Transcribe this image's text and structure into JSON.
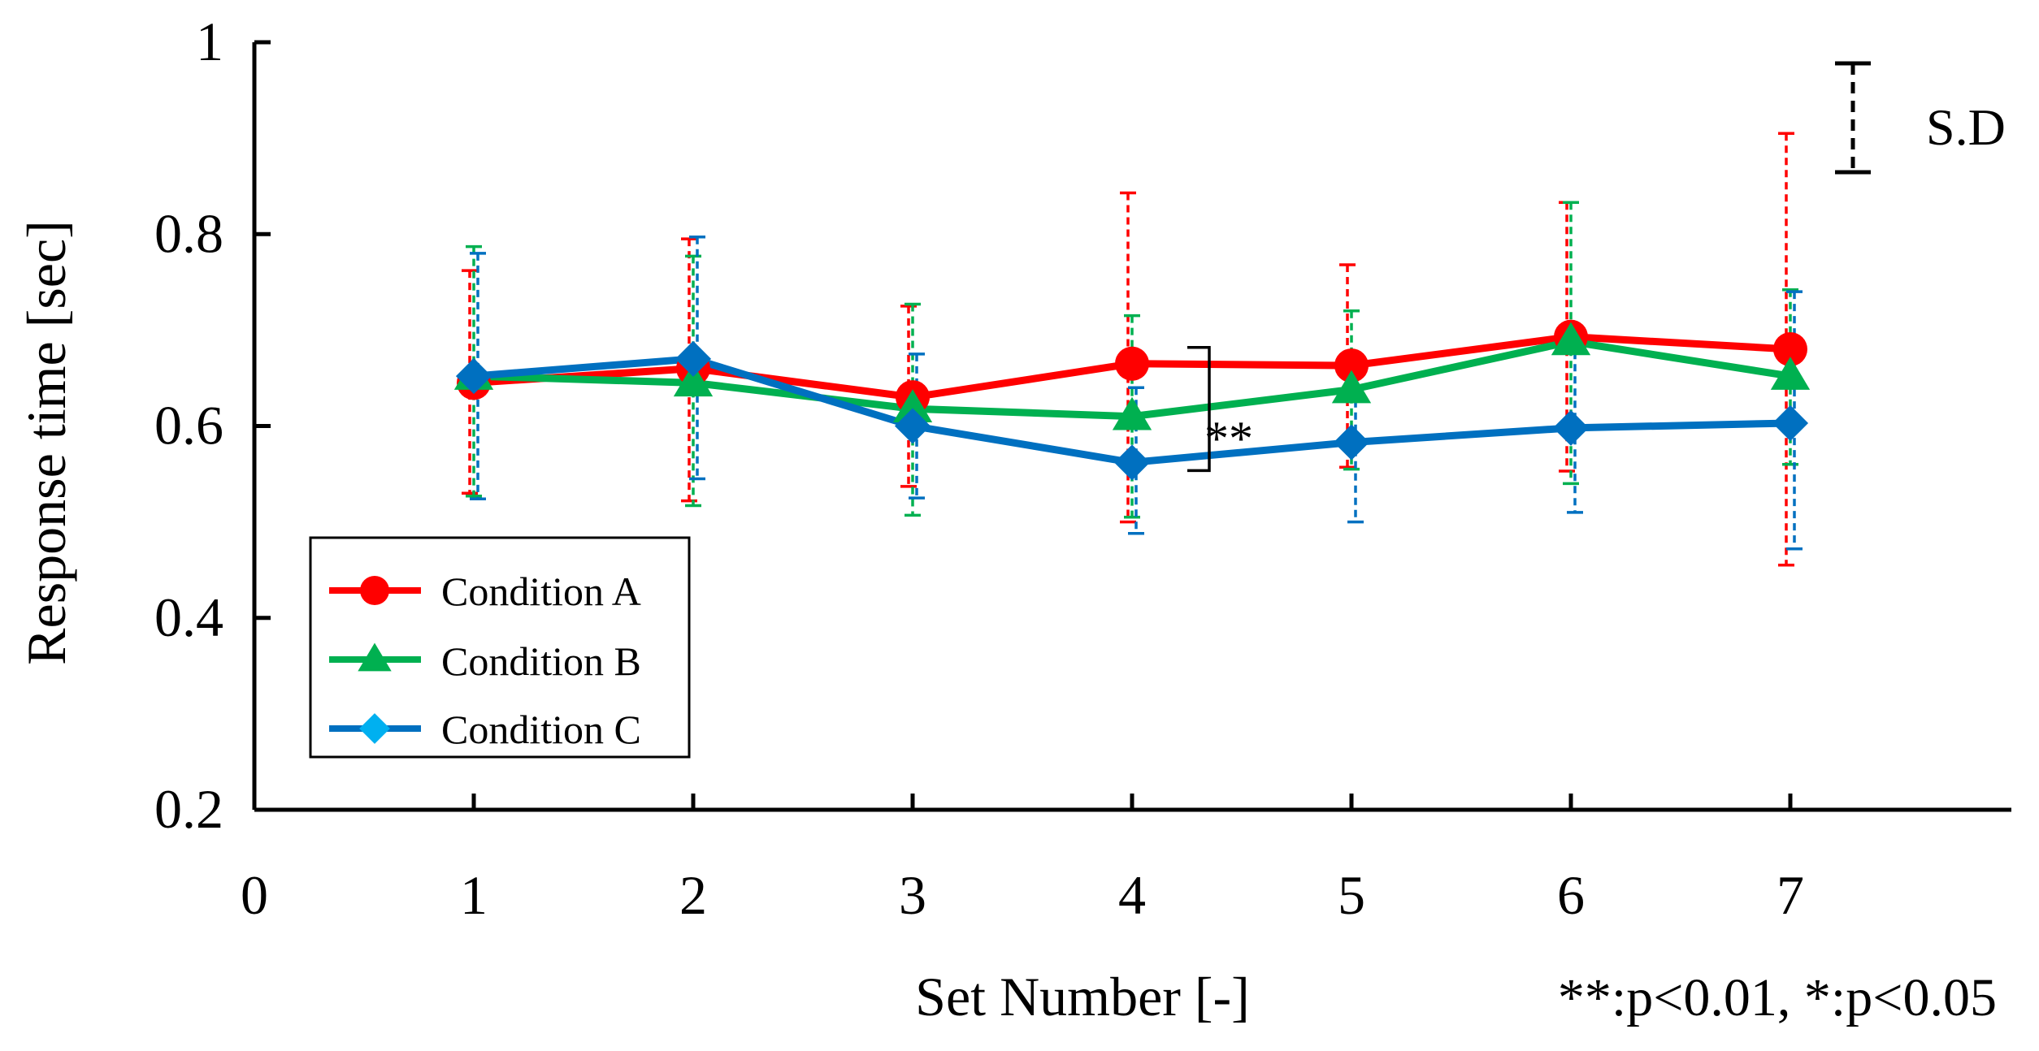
{
  "chart_data": {
    "type": "line",
    "title": "",
    "xlabel": "Set Number [-]",
    "ylabel": "Response time [sec]",
    "xlim": [
      0,
      8
    ],
    "ylim": [
      0.2,
      1.0
    ],
    "x": [
      1,
      2,
      3,
      4,
      5,
      6,
      7
    ],
    "x_tick_labels": [
      "0",
      "1",
      "2",
      "3",
      "4",
      "5",
      "6",
      "7"
    ],
    "y_tick_labels": [
      "0.2",
      "0.4",
      "0.6",
      "0.8",
      "1"
    ],
    "series": [
      {
        "name": "Condition A",
        "color": "#ff0000",
        "marker": "circle",
        "values": [
          0.645,
          0.66,
          0.63,
          0.665,
          0.663,
          0.693,
          0.68
        ],
        "sd_upper": [
          0.762,
          0.795,
          0.725,
          0.843,
          0.768,
          0.833,
          0.905
        ],
        "sd_lower": [
          0.53,
          0.522,
          0.537,
          0.5,
          0.557,
          0.553,
          0.455
        ]
      },
      {
        "name": "Condition B",
        "color": "#00b050",
        "marker": "triangle",
        "values": [
          0.652,
          0.645,
          0.618,
          0.61,
          0.638,
          0.688,
          0.652
        ],
        "sd_upper": [
          0.787,
          0.777,
          0.727,
          0.715,
          0.72,
          0.833,
          0.742
        ],
        "sd_lower": [
          0.527,
          0.517,
          0.507,
          0.505,
          0.555,
          0.54,
          0.56
        ]
      },
      {
        "name": "Condition C",
        "color": "#0070c0",
        "marker": "diamond",
        "values": [
          0.652,
          0.67,
          0.6,
          0.562,
          0.583,
          0.598,
          0.603
        ],
        "sd_upper": [
          0.78,
          0.797,
          0.675,
          0.64,
          0.665,
          0.69,
          0.74
        ],
        "sd_lower": [
          0.524,
          0.545,
          0.525,
          0.488,
          0.5,
          0.51,
          0.472
        ]
      }
    ],
    "legend": {
      "position": "bottom-left"
    },
    "legend_marker_colors": {
      "Condition C": "#00b0f0"
    },
    "significance": {
      "x": 4,
      "label": "**"
    },
    "sd_legend_label": "S.D",
    "p_note": "**:p<0.01, *:p<0.05",
    "grid": false
  }
}
